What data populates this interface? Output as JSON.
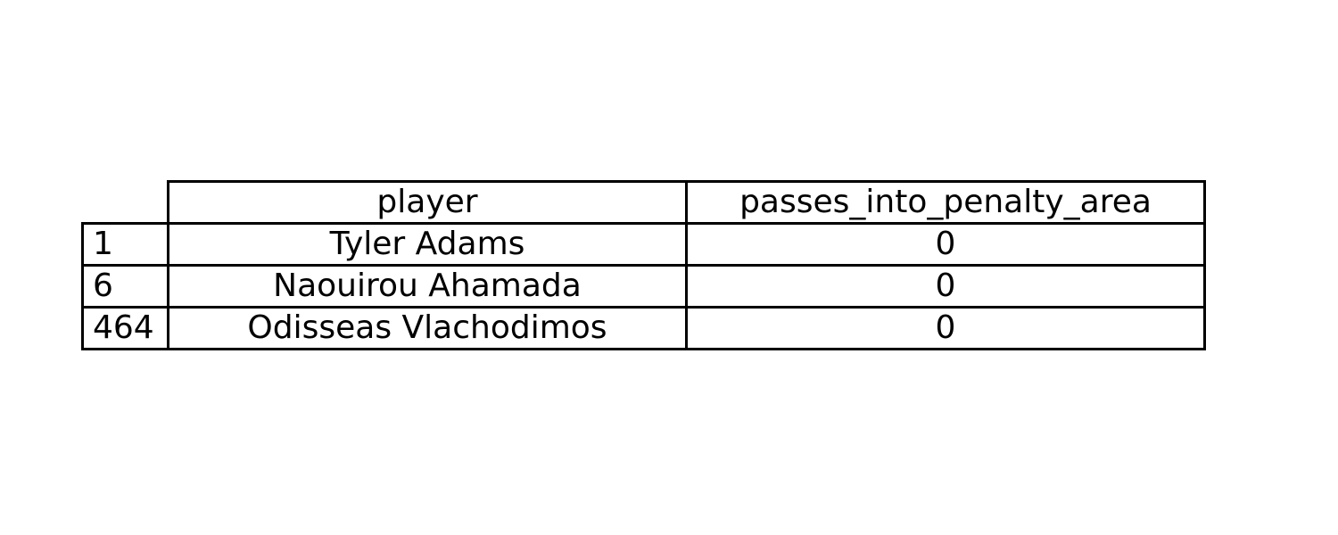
{
  "chart_data": {
    "type": "table",
    "columns": [
      "player",
      "passes_into_penalty_area"
    ],
    "rows": [
      {
        "index": "1",
        "player": "Tyler Adams",
        "passes_into_penalty_area": "0"
      },
      {
        "index": "6",
        "player": "Naouirou Ahamada",
        "passes_into_penalty_area": "0"
      },
      {
        "index": "464",
        "player": "Odisseas Vlachodimos",
        "passes_into_penalty_area": "0"
      }
    ]
  }
}
